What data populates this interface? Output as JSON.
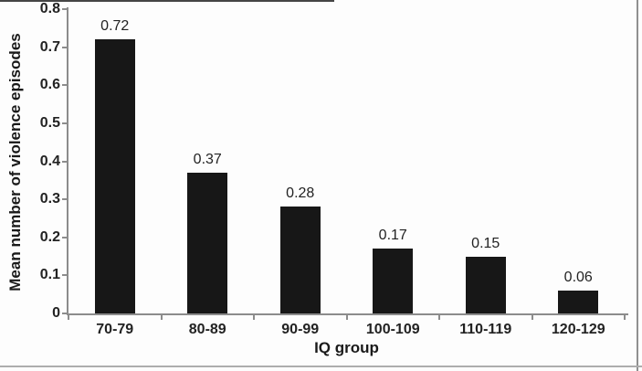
{
  "figure": {
    "background": "#fdfdfd",
    "bar_color": "#171717",
    "axis_color": "#8c8c8c",
    "text_color": "#222222"
  },
  "chart_data": {
    "type": "bar",
    "title": "",
    "categories": [
      "70-79",
      "80-89",
      "90-99",
      "100-109",
      "110-119",
      "120-129"
    ],
    "values": [
      0.72,
      0.37,
      0.28,
      0.17,
      0.15,
      0.06
    ],
    "value_labels": [
      "0.72",
      "0.37",
      "0.28",
      "0.17",
      "0.15",
      "0.06"
    ],
    "xlabel": "IQ group",
    "ylabel": "Mean number of violence episodes",
    "ylim": [
      0,
      0.8
    ],
    "yticks": [
      0,
      0.1,
      0.2,
      0.3,
      0.4,
      0.5,
      0.6,
      0.7,
      0.8
    ],
    "ytick_labels": [
      "0",
      "0.1",
      "0.2",
      "0.3",
      "0.4",
      "0.5",
      "0.6",
      "0.7",
      "0.8"
    ],
    "grid": false,
    "legend": null,
    "bar_color": "#171717"
  }
}
